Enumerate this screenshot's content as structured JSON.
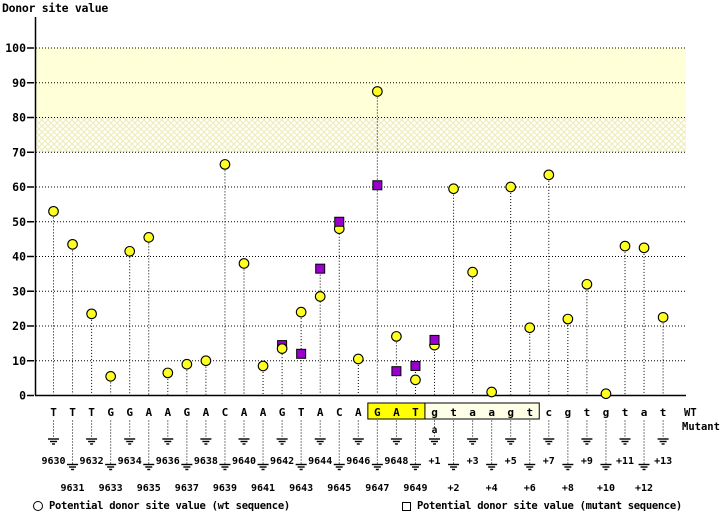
{
  "title": "Donor site value",
  "legend": {
    "wt": "Potential donor site value (wt sequence)",
    "mutant": "Potential donor site value (mutant sequence)"
  },
  "colors": {
    "wt_marker": "#ffff22",
    "mutant_marker": "#9900cc",
    "mutant_text": "#2222cc",
    "mutant_row_label": "#0000dd",
    "band_strong": "#ffffd8",
    "band_hatch_line": "#eeeebb",
    "exon_box": "#ffff00",
    "intron_box": "#ffffe8",
    "axis": "#000000"
  },
  "chart_data": {
    "type": "scatter",
    "title": "Donor site value",
    "ylabel": "Donor site value",
    "ylim": [
      0,
      110
    ],
    "yticks": [
      0,
      10,
      20,
      30,
      40,
      50,
      60,
      70,
      80,
      90,
      100
    ],
    "grid": true,
    "legend_position": "bottom",
    "bands": [
      {
        "from": 80,
        "to": 100,
        "style": "solid"
      },
      {
        "from": 70,
        "to": 80,
        "style": "hatch"
      }
    ],
    "series": [
      {
        "name": "Potential donor site value (wt sequence)",
        "marker": "circle"
      },
      {
        "name": "Potential donor site value (mutant sequence)",
        "marker": "square"
      }
    ],
    "positions": [
      {
        "label": "9630",
        "base": "T",
        "wt": 53,
        "mut": null
      },
      {
        "label": "9631",
        "base": "T",
        "wt": 43.5,
        "mut": null
      },
      {
        "label": "9632",
        "base": "T",
        "wt": 23.5,
        "mut": null
      },
      {
        "label": "9633",
        "base": "G",
        "wt": 5.5,
        "mut": null
      },
      {
        "label": "9634",
        "base": "G",
        "wt": 41.5,
        "mut": null
      },
      {
        "label": "9635",
        "base": "A",
        "wt": 45.5,
        "mut": null
      },
      {
        "label": "9636",
        "base": "A",
        "wt": 6.5,
        "mut": null
      },
      {
        "label": "9637",
        "base": "G",
        "wt": 9,
        "mut": null
      },
      {
        "label": "9638",
        "base": "A",
        "wt": 10,
        "mut": null
      },
      {
        "label": "9639",
        "base": "C",
        "wt": 66.5,
        "mut": null
      },
      {
        "label": "9640",
        "base": "A",
        "wt": 38,
        "mut": null
      },
      {
        "label": "9641",
        "base": "A",
        "wt": 8.5,
        "mut": null
      },
      {
        "label": "9642",
        "base": "G",
        "wt": 13.5,
        "mut": 14.5,
        "mut_behind": true
      },
      {
        "label": "9643",
        "base": "T",
        "wt": 24,
        "mut": 12
      },
      {
        "label": "9644",
        "base": "A",
        "wt": 28.5,
        "mut": 36.5
      },
      {
        "label": "9645",
        "base": "C",
        "wt": 48,
        "mut": 50
      },
      {
        "label": "9646",
        "base": "A",
        "wt": 10.5,
        "mut": null
      },
      {
        "label": "9647",
        "base": "G",
        "wt": 87.5,
        "mut": 60.5
      },
      {
        "label": "9648",
        "base": "A",
        "wt": 17,
        "mut": 7
      },
      {
        "label": "9649",
        "base": "T",
        "wt": 4.5,
        "mut": 8.5
      },
      {
        "label": "+1",
        "base": "g",
        "wt": 14.5,
        "mut": 16
      },
      {
        "label": "+2",
        "base": "t",
        "wt": 59.5,
        "mut": null
      },
      {
        "label": "+3",
        "base": "a",
        "wt": 35.5,
        "mut": null
      },
      {
        "label": "+4",
        "base": "a",
        "wt": 1,
        "mut": null
      },
      {
        "label": "+5",
        "base": "g",
        "wt": 60,
        "mut": null
      },
      {
        "label": "+6",
        "base": "t",
        "wt": 19.5,
        "mut": null
      },
      {
        "label": "+7",
        "base": "c",
        "wt": 63.5,
        "mut": null
      },
      {
        "label": "+8",
        "base": "g",
        "wt": 22,
        "mut": null
      },
      {
        "label": "+9",
        "base": "t",
        "wt": 32,
        "mut": null
      },
      {
        "label": "+10",
        "base": "g",
        "wt": 0.5,
        "mut": null
      },
      {
        "label": "+11",
        "base": "t",
        "wt": 43,
        "mut": null
      },
      {
        "label": "+12",
        "base": "a",
        "wt": 42.5,
        "mut": null
      },
      {
        "label": "+13",
        "base": "t",
        "wt": 22.5,
        "mut": null
      }
    ],
    "highlight_box": {
      "exon_bases": "GAT",
      "intron_bases": "gtaagt",
      "exon_start_index": 17,
      "exon_end_index": 19,
      "intron_end_index": 25
    },
    "mutation": {
      "index": 20,
      "wt_base": "g",
      "mutant_base": "a"
    },
    "row_labels": {
      "wt": "WT",
      "mutant": "Mutant"
    }
  }
}
